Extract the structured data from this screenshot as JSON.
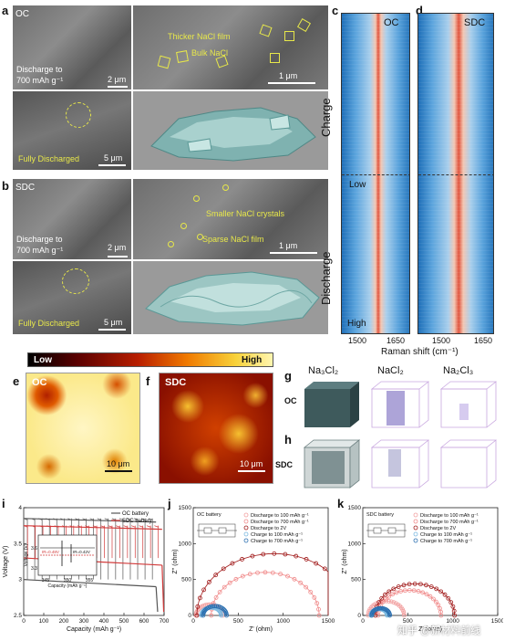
{
  "panels": {
    "a": {
      "letter": "a",
      "tag": "OC",
      "discharge_label": "Discharge to",
      "discharge_value": "700 mAh g⁻¹",
      "scale_top": "2 μm",
      "fully": "Fully Discharged",
      "scale_bottom": "5 μm",
      "zoom_label_1": "Thicker NaCl film",
      "zoom_label_2": "Bulk NaCl",
      "zoom_scale": "1 μm"
    },
    "b": {
      "letter": "b",
      "tag": "SDC",
      "discharge_label": "Discharge to",
      "discharge_value": "700 mAh g⁻¹",
      "scale_top": "2 μm",
      "fully": "Fully Discharged",
      "scale_bottom": "5 μm",
      "zoom_label_1": "Smaller NaCl crystals",
      "zoom_label_2": "Sparse NaCl film",
      "zoom_scale": "1 μm"
    },
    "c": {
      "letter": "c",
      "tag": "OC"
    },
    "d": {
      "letter": "d",
      "tag": "SDC"
    },
    "raman": {
      "charge": "Charge",
      "discharge": "Discharge",
      "low": "Low",
      "high": "High",
      "ticks": [
        "1500",
        "1650"
      ],
      "xlabel": "Raman shift (cm⁻¹)"
    },
    "colorbar": {
      "low": "Low",
      "high": "High"
    },
    "e": {
      "letter": "e",
      "tag": "OC",
      "scale": "10 μm"
    },
    "f": {
      "letter": "f",
      "tag": "SDC",
      "scale": "10 μm"
    },
    "g": {
      "letter": "g",
      "row": "OC",
      "cols": [
        "Na₃Cl₂",
        "NaCl₂",
        "Na₂Cl₃"
      ]
    },
    "h": {
      "letter": "h",
      "row": "SDC"
    },
    "i": {
      "letter": "i"
    },
    "j": {
      "letter": "j",
      "title": "OC battery"
    },
    "k": {
      "letter": "k",
      "title": "SDC battery"
    },
    "watermark": "知乎 @新材料前线"
  },
  "chart_data": [
    {
      "panel": "i",
      "type": "line",
      "xlabel": "Capacity (mAh g⁻¹)",
      "ylabel": "Voltage (V)",
      "xlim": [
        0,
        700
      ],
      "ylim": [
        2.5,
        4.0
      ],
      "xticks": [
        0,
        100,
        200,
        300,
        400,
        500,
        600,
        700
      ],
      "yticks": [
        2.5,
        3.0,
        3.5,
        4.0
      ],
      "legend_position": "top-right",
      "series": [
        {
          "name": "OC battery",
          "color": "#555555",
          "charge_plateau": 3.85,
          "discharge_plateau": 3.0,
          "end_capacity": 660
        },
        {
          "name": "SDC battery",
          "color": "#d23a3a",
          "charge_plateau": 3.75,
          "discharge_plateau": 3.3,
          "end_capacity": 690
        }
      ],
      "inset": {
        "xlabel": "Capacity (mAh g⁻¹)",
        "ylabel": "Voltage (V)",
        "xticks": [
          345,
          350,
          355
        ],
        "yticks": [
          3.3,
          3.6
        ],
        "annotations": [
          "IR=0.48V",
          "IR=0.42V"
        ]
      }
    },
    {
      "panel": "j",
      "type": "scatter",
      "xlabel": "Z' (ohm)",
      "ylabel": "Z'' (ohm)",
      "xlim": [
        0,
        1500
      ],
      "ylim": [
        0,
        1500
      ],
      "xticks": [
        0,
        500,
        1000,
        1500
      ],
      "yticks": [
        0,
        500,
        1000,
        1500
      ],
      "series": [
        {
          "name": "Discharge to 100 mAh g⁻¹",
          "color": "#f2a0a0",
          "center": 180,
          "radius": 150
        },
        {
          "name": "Discharge to 700 mAh g⁻¹",
          "color": "#f08a8a",
          "center": 800,
          "radius": 600
        },
        {
          "name": "Discharge to 2V",
          "color": "#a01818",
          "center": 900,
          "radius": 860
        },
        {
          "name": "Charge to 100 mAh g⁻¹",
          "color": "#7ab8e0",
          "center": 200,
          "radius": 110
        },
        {
          "name": "Charge to 700 mAh g⁻¹",
          "color": "#2a6fb0",
          "center": 240,
          "radius": 130
        }
      ]
    },
    {
      "panel": "k",
      "type": "scatter",
      "xlabel": "Z' (ohm)",
      "ylabel": "Z'' (ohm)",
      "xlim": [
        0,
        1500
      ],
      "ylim": [
        0,
        1500
      ],
      "xticks": [
        0,
        500,
        1000,
        1500
      ],
      "yticks": [
        0,
        500,
        1000,
        1500
      ],
      "series": [
        {
          "name": "Discharge to 100 mAh g⁻¹",
          "color": "#f2a0a0",
          "center": 260,
          "radius": 200
        },
        {
          "name": "Discharge to 700 mAh g⁻¹",
          "color": "#f08a8a",
          "center": 520,
          "radius": 350
        },
        {
          "name": "Discharge to 2V",
          "color": "#a01818",
          "center": 580,
          "radius": 440
        },
        {
          "name": "Charge to 100 mAh g⁻¹",
          "color": "#7ab8e0",
          "center": 180,
          "radius": 90
        },
        {
          "name": "Charge to 700 mAh g⁻¹",
          "color": "#2a6fb0",
          "center": 200,
          "radius": 100
        }
      ]
    }
  ]
}
